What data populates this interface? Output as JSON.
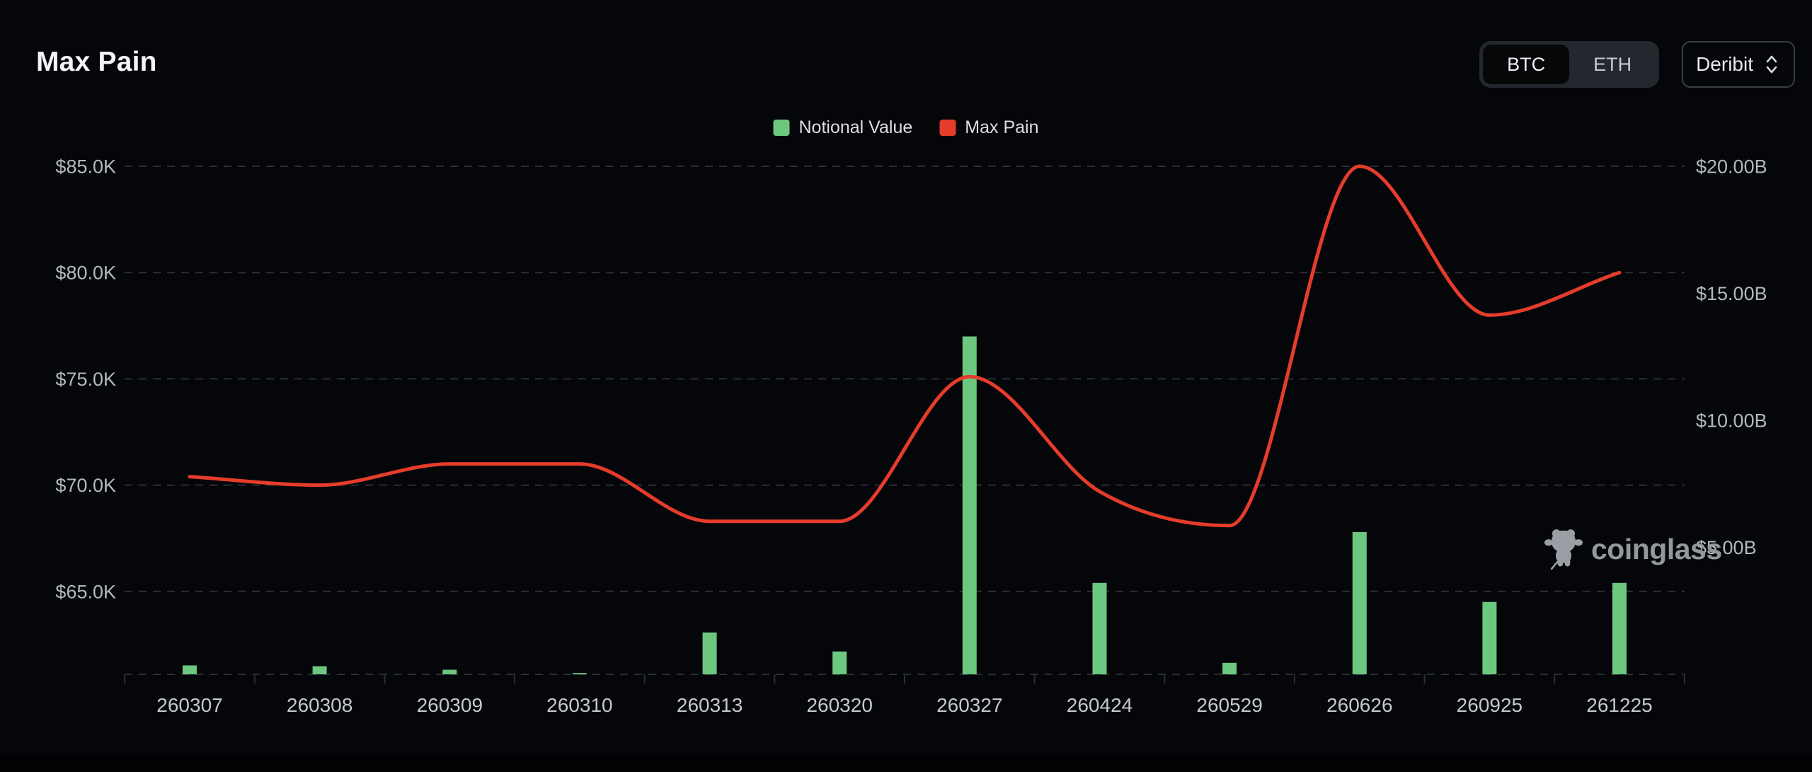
{
  "page": {
    "title": "Max Pain",
    "background": "#05060a"
  },
  "controls": {
    "asset_toggle": {
      "options": [
        "BTC",
        "ETH"
      ],
      "selected": "BTC"
    },
    "exchange_select": {
      "value": "Deribit"
    }
  },
  "legend": [
    {
      "label": "Notional Value",
      "color": "#6cc87f"
    },
    {
      "label": "Max Pain",
      "color": "#e63c2c"
    }
  ],
  "watermark": {
    "text": "coinglass"
  },
  "chart_data": {
    "type": "bar",
    "subtype": "bar+line combo, dual y-axis",
    "categories": [
      "260307",
      "260308",
      "260309",
      "260310",
      "260313",
      "260320",
      "260327",
      "260424",
      "260529",
      "260626",
      "260925",
      "261225"
    ],
    "series": [
      {
        "name": "Notional Value",
        "type": "bar",
        "y_axis": "right",
        "unit": "USD billions",
        "color": "#6cc87f",
        "values": [
          0.35,
          0.32,
          0.18,
          0.05,
          1.65,
          0.9,
          13.3,
          3.6,
          0.45,
          5.6,
          2.85,
          3.6
        ]
      },
      {
        "name": "Max Pain",
        "type": "line",
        "smooth": true,
        "y_axis": "left",
        "unit": "USD thousands",
        "color": "#e63c2c",
        "values": [
          70.4,
          70.0,
          71.0,
          71.0,
          68.3,
          68.3,
          75.1,
          69.7,
          68.1,
          85.0,
          78.0,
          80.0
        ]
      }
    ],
    "left_axis": {
      "tick_labels": [
        "$65.0K",
        "$70.0K",
        "$75.0K",
        "$80.0K",
        "$85.0K"
      ],
      "tick_values": [
        65,
        70,
        75,
        80,
        85
      ],
      "min": 61.1,
      "max": 85
    },
    "right_axis": {
      "tick_labels": [
        "$5.00B",
        "$10.00B",
        "$15.00B",
        "$20.00B"
      ],
      "tick_values": [
        5,
        10,
        15,
        20
      ],
      "min": 0,
      "max": 20
    },
    "grid": {
      "dashed": true,
      "color": "#2b2f35"
    },
    "axis_text_color": "#b4b8bf",
    "x_axis_text_color": "#c5c8cd",
    "legend_position": "top-center"
  }
}
